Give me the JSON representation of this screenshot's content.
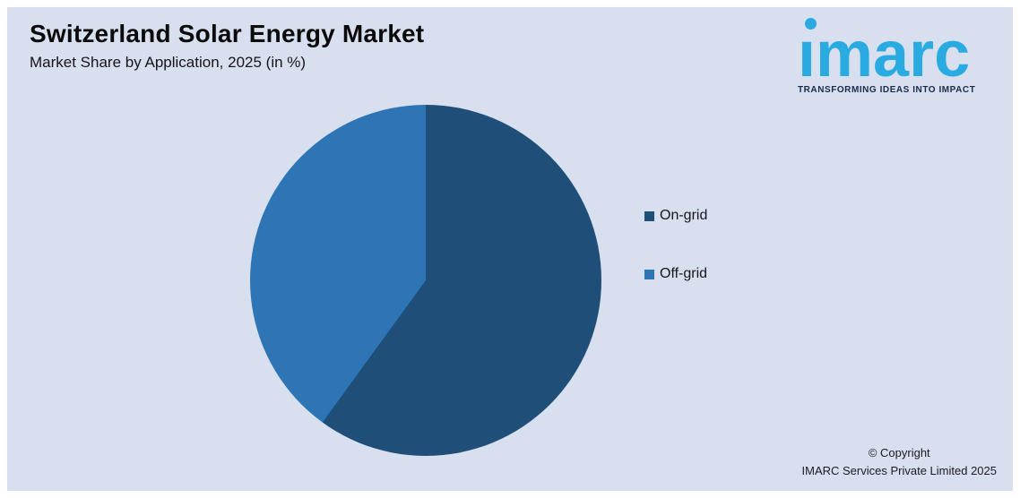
{
  "header": {
    "title": "Switzerland Solar Energy Market",
    "subtitle": "Market Share by Application, 2025 (in %)"
  },
  "logo": {
    "brand": "ımarc",
    "tagline": "TRANSFORMING IDEAS INTO IMPACT",
    "brand_color": "#29ABE2",
    "tagline_color": "#1B2A4B"
  },
  "chart_data": {
    "type": "pie",
    "title": "Switzerland Solar Energy Market",
    "subtitle": "Market Share by Application, 2025 (in %)",
    "categories": [
      "On-grid",
      "Off-grid"
    ],
    "values": [
      60,
      40
    ],
    "unit": "percent",
    "colors": [
      "#1F4E79",
      "#2E75B6"
    ],
    "start_angle_deg": 0,
    "direction": "clockwise",
    "legend_position": "right",
    "background_color": "#D8DFEE"
  },
  "footer": {
    "copyright_line1": "© Copyright",
    "copyright_line2": "IMARC Services Private Limited 2025"
  }
}
